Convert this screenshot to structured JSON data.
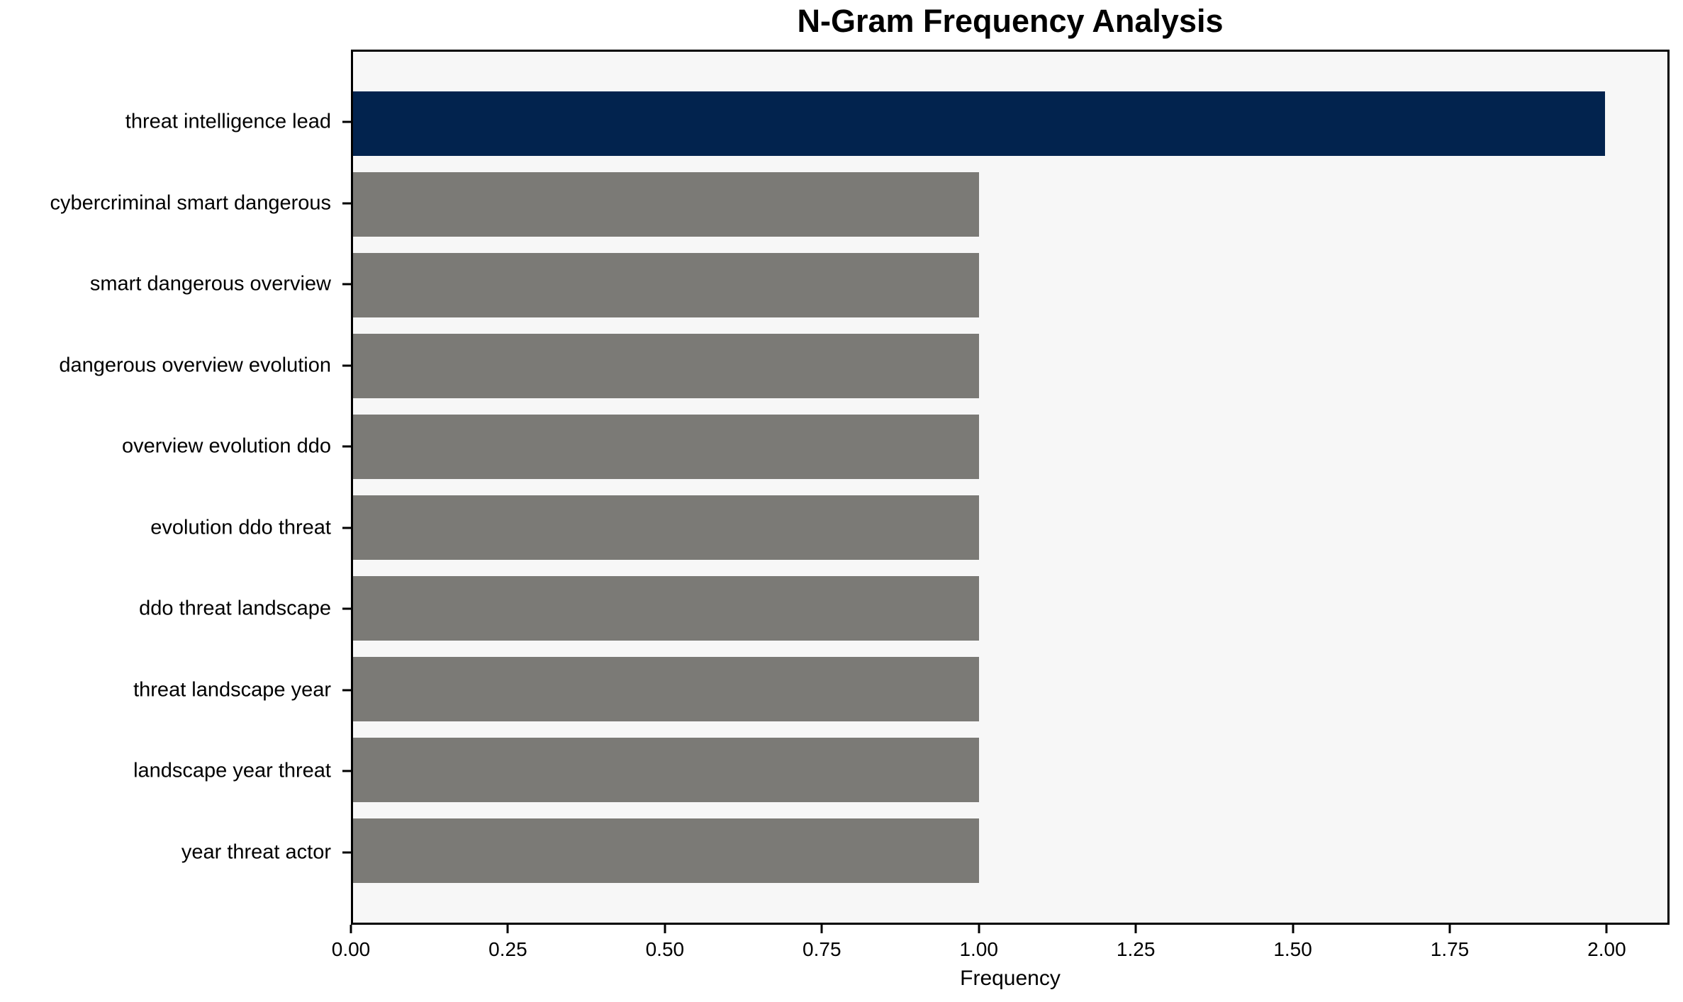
{
  "chart_data": {
    "type": "bar",
    "orientation": "horizontal",
    "title": "N-Gram Frequency Analysis",
    "xlabel": "Frequency",
    "ylabel": "",
    "categories": [
      "threat intelligence lead",
      "cybercriminal smart dangerous",
      "smart dangerous overview",
      "dangerous overview evolution",
      "overview evolution ddo",
      "evolution ddo threat",
      "ddo threat landscape",
      "threat landscape year",
      "landscape year threat",
      "year threat actor"
    ],
    "values": [
      2.0,
      1.0,
      1.0,
      1.0,
      1.0,
      1.0,
      1.0,
      1.0,
      1.0,
      1.0
    ],
    "bar_colors": [
      "#02234E",
      "#7B7A76",
      "#7B7A76",
      "#7B7A76",
      "#7B7A76",
      "#7B7A76",
      "#7B7A76",
      "#7B7A76",
      "#7B7A76",
      "#7B7A76"
    ],
    "xlim": [
      0,
      2.1
    ],
    "x_tick_values": [
      0,
      0.25,
      0.5,
      0.75,
      1.0,
      1.25,
      1.5,
      1.75,
      2.0
    ],
    "x_tick_labels": [
      "0.00",
      "0.25",
      "0.50",
      "0.75",
      "1.00",
      "1.25",
      "1.50",
      "1.75",
      "2.00"
    ],
    "grid": false,
    "legend_position": "none",
    "bar_height_ratio": 0.8,
    "colors": {
      "plot_background": "#F7F7F7",
      "figure_background": "#FFFFFF",
      "spine": "#000000",
      "text": "#000000"
    }
  }
}
